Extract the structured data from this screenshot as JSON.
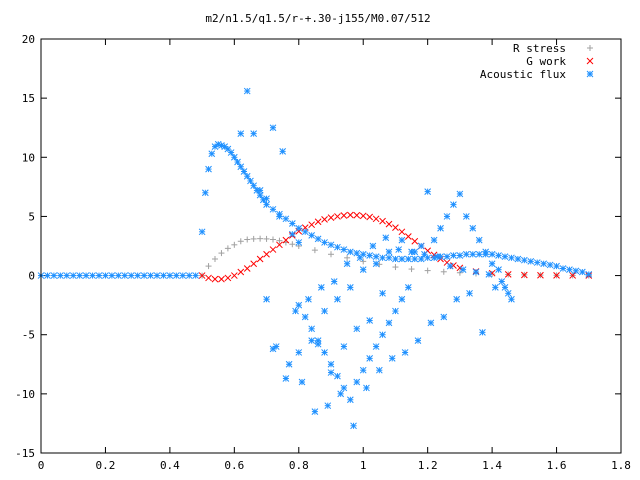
{
  "chart_data": {
    "type": "scatter",
    "title": "m2/n1.5/q1.5/r-+.30-j155/M0.07/512",
    "xlabel": "",
    "ylabel": "",
    "xlim": [
      0,
      1.8
    ],
    "ylim": [
      -15,
      20
    ],
    "xticks": [
      "0",
      "0.2",
      "0.4",
      "0.6",
      "0.8",
      "1",
      "1.2",
      "1.4",
      "1.6",
      "1.8"
    ],
    "yticks": [
      "-15",
      "-10",
      "-5",
      "0",
      "5",
      "10",
      "15",
      "20"
    ],
    "grid": false,
    "legend_position": "top-right",
    "series": [
      {
        "name": "R stress",
        "marker": "plus",
        "color": "#a0a0a0",
        "x": [
          0.5,
          0.52,
          0.54,
          0.56,
          0.58,
          0.6,
          0.62,
          0.64,
          0.66,
          0.68,
          0.7,
          0.72,
          0.74,
          0.76,
          0.78,
          0.8,
          0.85,
          0.9,
          0.95,
          1.0,
          1.05,
          1.1,
          1.15,
          1.2,
          1.25,
          1.3,
          1.35,
          1.4,
          1.45,
          1.5,
          1.55,
          1.6,
          1.65,
          1.7
        ],
        "y": [
          0.0,
          0.8,
          1.4,
          1.9,
          2.3,
          2.6,
          2.9,
          3.05,
          3.1,
          3.12,
          3.1,
          3.05,
          2.95,
          2.8,
          2.65,
          2.5,
          2.15,
          1.8,
          1.5,
          1.2,
          0.95,
          0.72,
          0.55,
          0.42,
          0.32,
          0.24,
          0.18,
          0.13,
          0.09,
          0.06,
          0.04,
          0.02,
          0.01,
          0.0
        ]
      },
      {
        "name": "G work",
        "marker": "cross",
        "color": "#ff0000",
        "x": [
          0.5,
          0.52,
          0.54,
          0.56,
          0.58,
          0.6,
          0.62,
          0.64,
          0.66,
          0.68,
          0.7,
          0.72,
          0.74,
          0.76,
          0.78,
          0.8,
          0.82,
          0.84,
          0.86,
          0.88,
          0.9,
          0.92,
          0.94,
          0.96,
          0.98,
          1.0,
          1.02,
          1.04,
          1.06,
          1.08,
          1.1,
          1.12,
          1.14,
          1.16,
          1.18,
          1.2,
          1.22,
          1.24,
          1.26,
          1.28,
          1.3,
          1.35,
          1.4,
          1.45,
          1.5,
          1.55,
          1.6,
          1.65,
          1.7
        ],
        "y": [
          0.0,
          -0.2,
          -0.3,
          -0.3,
          -0.2,
          0.0,
          0.3,
          0.6,
          1.0,
          1.4,
          1.8,
          2.2,
          2.6,
          3.0,
          3.4,
          3.75,
          4.05,
          4.3,
          4.55,
          4.75,
          4.9,
          5.0,
          5.08,
          5.12,
          5.1,
          5.05,
          4.95,
          4.8,
          4.6,
          4.35,
          4.05,
          3.7,
          3.3,
          2.9,
          2.5,
          2.1,
          1.75,
          1.4,
          1.1,
          0.85,
          0.65,
          0.35,
          0.2,
          0.1,
          0.05,
          0.03,
          0.02,
          0.01,
          0.0
        ]
      },
      {
        "name": "Acoustic flux",
        "marker": "star",
        "color": "#1e90ff",
        "x": [
          0.0,
          0.02,
          0.04,
          0.06,
          0.08,
          0.1,
          0.12,
          0.14,
          0.16,
          0.18,
          0.2,
          0.22,
          0.24,
          0.26,
          0.28,
          0.3,
          0.32,
          0.34,
          0.36,
          0.38,
          0.4,
          0.42,
          0.44,
          0.46,
          0.48,
          0.5,
          0.51,
          0.52,
          0.53,
          0.54,
          0.55,
          0.56,
          0.57,
          0.58,
          0.59,
          0.6,
          0.61,
          0.62,
          0.63,
          0.64,
          0.65,
          0.66,
          0.67,
          0.68,
          0.69,
          0.7,
          0.72,
          0.74,
          0.76,
          0.78,
          0.8,
          0.82,
          0.84,
          0.86,
          0.88,
          0.9,
          0.92,
          0.94,
          0.96,
          0.98,
          1.0,
          1.02,
          1.04,
          1.06,
          1.08,
          1.1,
          1.12,
          1.14,
          1.16,
          1.18,
          1.2,
          1.22,
          1.24,
          1.26,
          1.28,
          1.3,
          1.32,
          1.34,
          1.36,
          1.38,
          1.4,
          1.42,
          1.44,
          1.46,
          1.48,
          1.5,
          1.52,
          1.54,
          1.56,
          1.58,
          1.6,
          1.62,
          1.64,
          1.66,
          1.68,
          1.7,
          0.64,
          0.72,
          0.66,
          0.75,
          0.68,
          0.7,
          0.78,
          0.8,
          0.82,
          0.84,
          0.86,
          0.88,
          0.9,
          0.92,
          0.94,
          0.96,
          0.98,
          1.0,
          1.02,
          1.04,
          1.06,
          1.08,
          1.1,
          1.12,
          1.14,
          1.16,
          1.18,
          1.2,
          1.22,
          1.24,
          1.26,
          1.28,
          1.3,
          1.32,
          1.34,
          1.36,
          1.38,
          1.4,
          1.42,
          1.44,
          1.46,
          0.62,
          0.7,
          0.73,
          0.77,
          0.81,
          0.85,
          0.89,
          0.93,
          0.97,
          1.01,
          1.05,
          1.09,
          1.13,
          1.17,
          1.21,
          1.25,
          1.29,
          1.33,
          1.37,
          1.41,
          1.45,
          0.72,
          0.76,
          0.8,
          0.84,
          0.88,
          0.92,
          0.96,
          1.0,
          1.04,
          1.08,
          1.12,
          0.74,
          0.79,
          0.83,
          0.87,
          0.91,
          0.95,
          0.99,
          1.03,
          1.07,
          1.11,
          1.15,
          1.19,
          1.23,
          1.27,
          1.31,
          1.35,
          1.39,
          1.43,
          0.8,
          0.86,
          0.9,
          0.94,
          0.98,
          1.02,
          1.06
        ],
        "y": [
          0,
          0,
          0,
          0,
          0,
          0,
          0,
          0,
          0,
          0,
          0,
          0,
          0,
          0,
          0,
          0,
          0,
          0,
          0,
          0,
          0,
          0,
          0,
          0,
          0,
          3.7,
          7.0,
          9.0,
          10.3,
          10.9,
          11.1,
          11.0,
          10.9,
          10.7,
          10.4,
          10.0,
          9.6,
          9.2,
          8.8,
          8.4,
          8.0,
          7.6,
          7.2,
          6.8,
          6.4,
          6.0,
          5.6,
          5.2,
          4.8,
          4.4,
          4.0,
          3.7,
          3.4,
          3.1,
          2.8,
          2.6,
          2.4,
          2.2,
          2.0,
          1.9,
          1.8,
          1.7,
          1.6,
          1.5,
          1.5,
          1.4,
          1.4,
          1.4,
          1.4,
          1.4,
          1.5,
          1.5,
          1.6,
          1.6,
          1.7,
          1.7,
          1.8,
          1.8,
          1.8,
          1.8,
          1.8,
          1.7,
          1.6,
          1.5,
          1.4,
          1.3,
          1.2,
          1.1,
          1.0,
          0.9,
          0.8,
          0.6,
          0.5,
          0.4,
          0.3,
          0.1,
          15.6,
          12.5,
          12.0,
          10.5,
          7.2,
          6.5,
          3.5,
          -2.5,
          -3.5,
          -4.5,
          -5.5,
          -6.5,
          -7.5,
          -8.5,
          -9.5,
          -10.5,
          -9.0,
          -8.0,
          -7.0,
          -6.0,
          -5.0,
          -4.0,
          -3.0,
          -2.0,
          -1.0,
          2.0,
          2.5,
          7.1,
          3.0,
          4.0,
          5.0,
          6.0,
          6.9,
          5.0,
          4.0,
          3.0,
          2.0,
          1.0,
          0.5,
          -1.0,
          -2.0,
          12.0,
          -2.0,
          -6.0,
          -7.5,
          -9.0,
          -11.5,
          -11.0,
          -10.0,
          -12.7,
          -9.5,
          -8.0,
          -7.0,
          -6.5,
          -5.5,
          -4.0,
          -3.5,
          -2.0,
          -1.5,
          -4.8,
          -1.0,
          -1.5,
          -6.2,
          -8.7,
          -6.5,
          -5.5,
          -3.0,
          -2.0,
          -1.0,
          0.5,
          1.0,
          2.0,
          3.0,
          5.0,
          -3.0,
          -2.0,
          -1.0,
          -0.5,
          1.0,
          1.5,
          2.5,
          3.2,
          2.2,
          2.0,
          1.8,
          1.6,
          0.8,
          0.5,
          0.3,
          0.1,
          -0.5,
          2.8,
          -5.8,
          -8.2,
          -6.0,
          -4.5,
          -3.8,
          -1.5
        ]
      }
    ]
  }
}
